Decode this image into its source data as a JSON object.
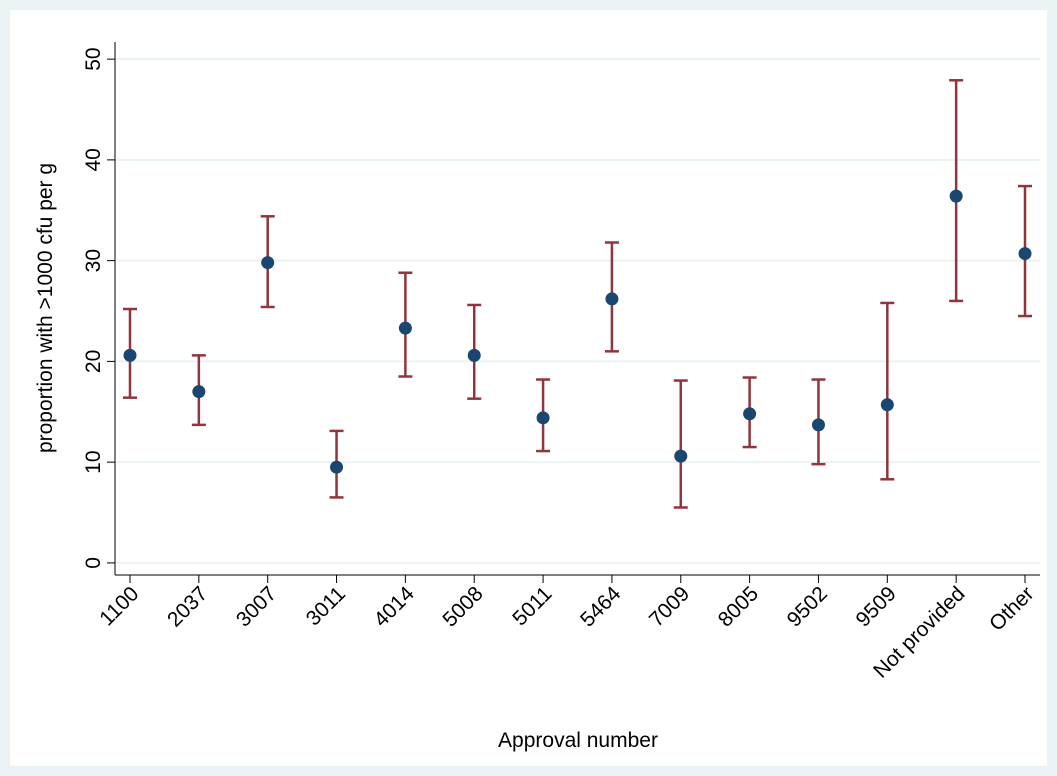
{
  "chart_data": {
    "type": "errorbar",
    "x_label": "Approval number",
    "y_label": "proportion with >1000 cfu per g",
    "categories": [
      "1100",
      "2037",
      "3007",
      "3011",
      "4014",
      "5008",
      "5011",
      "5464",
      "7009",
      "8005",
      "9502",
      "9509",
      "Not provided",
      "Other"
    ],
    "series": [
      {
        "color": "#1a476f",
        "error_color": "#90353b",
        "values": [
          20.6,
          17.0,
          29.8,
          9.5,
          23.3,
          20.6,
          14.4,
          26.2,
          10.6,
          14.8,
          13.7,
          15.7,
          36.4,
          30.7
        ],
        "low": [
          16.4,
          13.7,
          25.4,
          6.5,
          18.5,
          16.3,
          11.1,
          21.0,
          5.5,
          11.5,
          9.8,
          8.3,
          26.0,
          24.5
        ],
        "high": [
          25.2,
          20.6,
          34.4,
          13.1,
          28.8,
          25.6,
          18.2,
          31.8,
          18.1,
          18.4,
          18.2,
          25.8,
          47.9,
          37.4
        ]
      }
    ],
    "ylim": [
      -1.2,
      51.7
    ],
    "yticks": [
      0,
      10,
      20,
      30,
      40,
      50
    ],
    "grid": true
  }
}
